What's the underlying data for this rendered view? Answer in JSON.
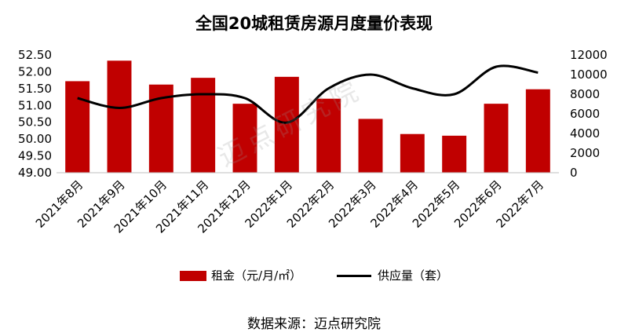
{
  "chart_data": {
    "type": "bar",
    "title": "全国20城租赁房源月度量价表现",
    "categories": [
      "2021年8月",
      "2021年9月",
      "2021年10月",
      "2021年11月",
      "2021年12月",
      "2022年1月",
      "2022年2月",
      "2022年3月",
      "2022年4月",
      "2022年5月",
      "2022年6月",
      "2022年7月"
    ],
    "series": [
      {
        "name": "租金（元/月/㎡）",
        "type": "bar",
        "axis": "left",
        "color": "#c00000",
        "values": [
          51.72,
          52.33,
          51.62,
          51.82,
          51.05,
          51.85,
          51.2,
          50.6,
          50.15,
          50.1,
          51.05,
          51.48
        ]
      },
      {
        "name": "供应量（套）",
        "type": "line",
        "axis": "right",
        "color": "#000000",
        "values": [
          7600,
          6600,
          7600,
          8000,
          7600,
          5100,
          8600,
          10000,
          8600,
          8000,
          10800,
          10200
        ]
      }
    ],
    "y_left": {
      "min": 49.0,
      "max": 52.5,
      "ticks": [
        "49.00",
        "49.50",
        "50.00",
        "50.50",
        "51.00",
        "51.50",
        "52.00",
        "52.50"
      ]
    },
    "y_right": {
      "min": 0,
      "max": 12000,
      "ticks": [
        "0",
        "2000",
        "4000",
        "6000",
        "8000",
        "10000",
        "12000"
      ]
    },
    "grid": false,
    "legend_position": "bottom"
  },
  "legend": {
    "bar_label": "租金（元/月/㎡）",
    "line_label": "供应量（套）"
  },
  "source": "数据来源：迈点研究院",
  "watermark": "迈点研究院"
}
